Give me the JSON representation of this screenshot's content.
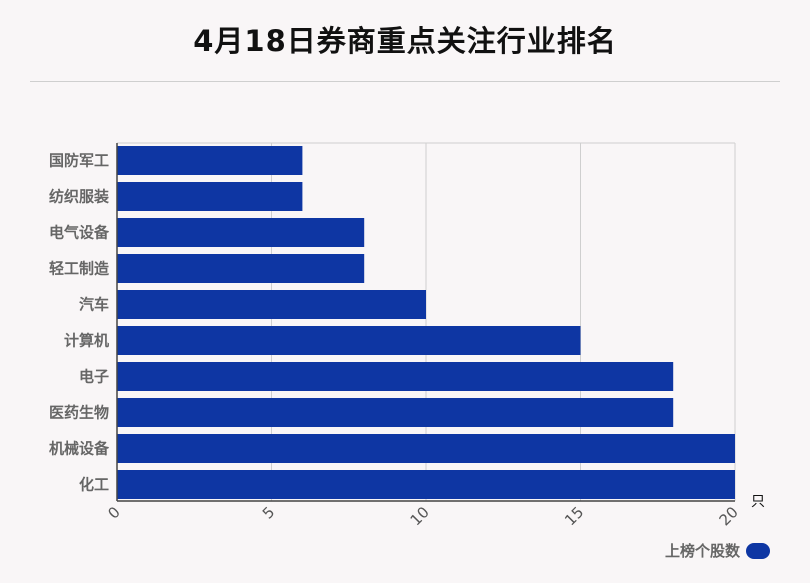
{
  "chart_data": {
    "type": "bar",
    "orientation": "horizontal",
    "title": "4月18日券商重点关注行业排名",
    "categories": [
      "国防军工",
      "纺织服装",
      "电气设备",
      "轻工制造",
      "汽车",
      "计算机",
      "电子",
      "医药生物",
      "机械设备",
      "化工"
    ],
    "series": [
      {
        "name": "上榜个股数",
        "values": [
          6,
          6,
          8,
          8,
          10,
          15,
          18,
          18,
          20,
          20
        ]
      }
    ],
    "xlim": [
      0,
      20
    ],
    "xticks": [
      "0",
      "5",
      "10",
      "15",
      "20"
    ],
    "xunit": "只",
    "grid": true,
    "legend_position": "bottom-right",
    "bar_color": "#0e36a3"
  }
}
